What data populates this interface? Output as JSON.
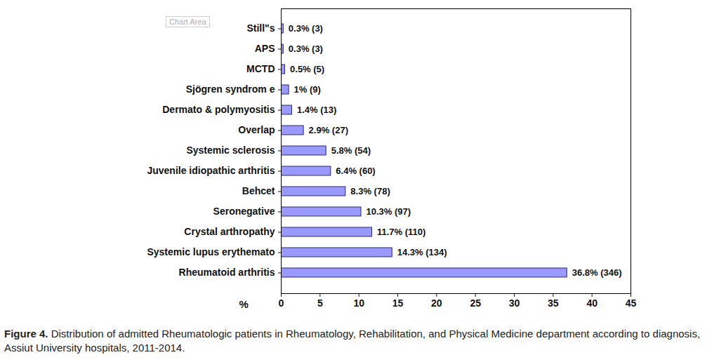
{
  "chart_data": {
    "type": "bar",
    "orientation": "horizontal",
    "caption_label": "Figure 4.",
    "caption": "Distribution of admitted Rheumatologic patients in Rheumatology, Rehabilitation, and Physical Medicine department according to diagnosis, Assiut University hospitals, 2011-2014.",
    "annotations": [
      "Chart Area"
    ],
    "xlabel": "%",
    "categories": [
      "Still\"s",
      "APS",
      "MCTD",
      "Sjögren syndrom e",
      "Dermato & polymyositis",
      "Overlap",
      "Systemic sclerosis",
      "Juvenile idiopathic arthritis",
      "Behcet",
      "Seronegative",
      "Crystal arthropathy",
      "Systemic lupus erythemato",
      "Rheumatoid arthritis"
    ],
    "values": [
      0.3,
      0.3,
      0.5,
      1,
      1.4,
      2.9,
      5.8,
      6.4,
      8.3,
      10.3,
      11.7,
      14.3,
      36.8
    ],
    "value_labels": [
      "0.3% (3)",
      "0.3% (3)",
      "0.5% (5)",
      "1% (9)",
      "1.4% (13)",
      "2.9% (27)",
      "5.8% (54)",
      "6.4% (60)",
      "8.3% (78)",
      "10.3% (97)",
      "11.7% (110)",
      "14.3% (134)",
      "36.8% (346)"
    ],
    "data_labels": true,
    "color": "#9999ff",
    "xlim": [
      0,
      45
    ],
    "xticks": [
      0,
      5,
      10,
      15,
      20,
      25,
      30,
      35,
      40,
      45
    ],
    "grid": false
  }
}
